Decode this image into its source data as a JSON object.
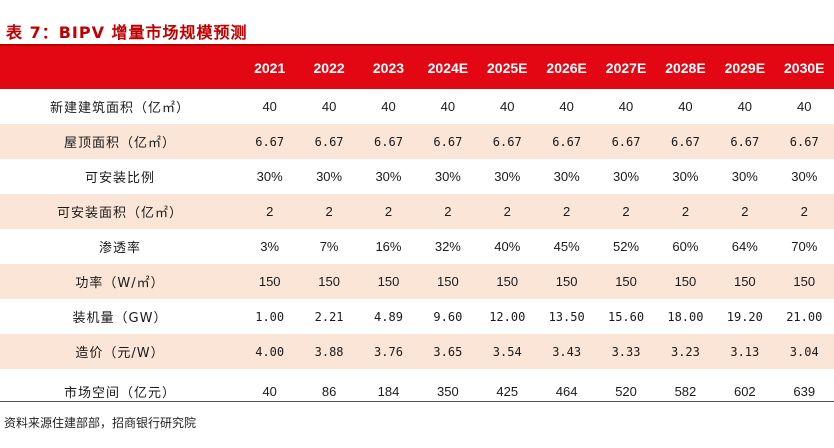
{
  "title": "表 7：BIPV 增量市场规模预测",
  "header": {
    "years": [
      "2021",
      "2022",
      "2023",
      "2024E",
      "2025E",
      "2026E",
      "2027E",
      "2028E",
      "2029E",
      "2030E"
    ]
  },
  "rows": [
    {
      "label": "新建建筑面积（亿㎡）",
      "values": [
        "40",
        "40",
        "40",
        "40",
        "40",
        "40",
        "40",
        "40",
        "40",
        "40"
      ]
    },
    {
      "label": "屋顶面积（亿㎡）",
      "values": [
        "6.67",
        "6.67",
        "6.67",
        "6.67",
        "6.67",
        "6.67",
        "6.67",
        "6.67",
        "6.67",
        "6.67"
      ]
    },
    {
      "label": "可安装比例",
      "values": [
        "30%",
        "30%",
        "30%",
        "30%",
        "30%",
        "30%",
        "30%",
        "30%",
        "30%",
        "30%"
      ]
    },
    {
      "label": "可安装面积（亿㎡）",
      "values": [
        "2",
        "2",
        "2",
        "2",
        "2",
        "2",
        "2",
        "2",
        "2",
        "2"
      ]
    },
    {
      "label": "渗透率",
      "values": [
        "3%",
        "7%",
        "16%",
        "32%",
        "40%",
        "45%",
        "52%",
        "60%",
        "64%",
        "70%"
      ]
    },
    {
      "label": "功率（W/㎡）",
      "values": [
        "150",
        "150",
        "150",
        "150",
        "150",
        "150",
        "150",
        "150",
        "150",
        "150"
      ]
    },
    {
      "label": "装机量（GW）",
      "values": [
        "1.00",
        "2.21",
        "4.89",
        "9.60",
        "12.00",
        "13.50",
        "15.60",
        "18.00",
        "19.20",
        "21.00"
      ]
    },
    {
      "label": "造价（元/W）",
      "values": [
        "4.00",
        "3.88",
        "3.76",
        "3.65",
        "3.54",
        "3.43",
        "3.33",
        "3.23",
        "3.13",
        "3.04"
      ]
    },
    {
      "label": "市场空间（亿元）",
      "values": [
        "40",
        "86",
        "184",
        "350",
        "425",
        "464",
        "520",
        "582",
        "602",
        "639"
      ]
    }
  ],
  "source": "资料来源住建部部，招商银行研究院"
}
